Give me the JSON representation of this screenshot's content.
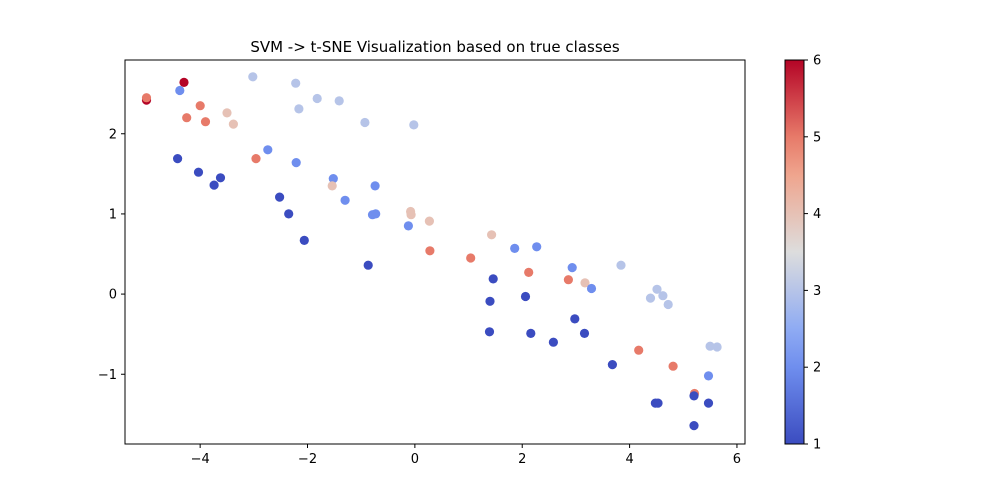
{
  "chart_data": {
    "type": "scatter",
    "title": "SVM -> t-SNE Visualization based on true classes",
    "xlabel": "",
    "ylabel": "",
    "xlim": [
      -5.4,
      6.15
    ],
    "ylim": [
      -1.87,
      2.92
    ],
    "x_ticks": [
      -4,
      -2,
      0,
      2,
      4,
      6
    ],
    "y_ticks": [
      -1,
      0,
      1,
      2
    ],
    "x_tick_labels": [
      "−4",
      "−2",
      "0",
      "2",
      "4",
      "6"
    ],
    "y_tick_labels": [
      "−1",
      "0",
      "1",
      "2"
    ],
    "colormap": "coolwarm",
    "colorbar": {
      "min": 1,
      "max": 6,
      "ticks": [
        1,
        2,
        3,
        4,
        5,
        6
      ],
      "tick_labels": [
        "1",
        "2",
        "3",
        "4",
        "5",
        "6"
      ]
    },
    "grid": false,
    "points": [
      {
        "x": -5.0,
        "y": 2.42,
        "c": 6
      },
      {
        "x": -5.0,
        "y": 2.45,
        "c": 5
      },
      {
        "x": -4.3,
        "y": 2.64,
        "c": 6
      },
      {
        "x": -4.38,
        "y": 2.54,
        "c": 2
      },
      {
        "x": -4.25,
        "y": 2.2,
        "c": 5
      },
      {
        "x": -4.0,
        "y": 2.35,
        "c": 5
      },
      {
        "x": -3.9,
        "y": 2.15,
        "c": 5
      },
      {
        "x": -3.5,
        "y": 2.26,
        "c": 4
      },
      {
        "x": -3.38,
        "y": 2.12,
        "c": 4
      },
      {
        "x": -3.02,
        "y": 2.71,
        "c": 3
      },
      {
        "x": -2.22,
        "y": 2.63,
        "c": 3
      },
      {
        "x": -1.82,
        "y": 2.44,
        "c": 3
      },
      {
        "x": -2.16,
        "y": 2.31,
        "c": 3
      },
      {
        "x": -1.41,
        "y": 2.41,
        "c": 3
      },
      {
        "x": -0.93,
        "y": 2.14,
        "c": 3
      },
      {
        "x": -0.02,
        "y": 2.11,
        "c": 3
      },
      {
        "x": -4.42,
        "y": 1.69,
        "c": 1
      },
      {
        "x": -4.03,
        "y": 1.52,
        "c": 1
      },
      {
        "x": -3.62,
        "y": 1.45,
        "c": 1
      },
      {
        "x": -3.74,
        "y": 1.36,
        "c": 1
      },
      {
        "x": -2.96,
        "y": 1.69,
        "c": 5
      },
      {
        "x": -2.74,
        "y": 1.8,
        "c": 2
      },
      {
        "x": -2.21,
        "y": 1.64,
        "c": 2
      },
      {
        "x": -2.52,
        "y": 1.21,
        "c": 1
      },
      {
        "x": -2.35,
        "y": 1.0,
        "c": 1
      },
      {
        "x": -2.06,
        "y": 0.67,
        "c": 1
      },
      {
        "x": -1.52,
        "y": 1.44,
        "c": 2
      },
      {
        "x": -1.54,
        "y": 1.35,
        "c": 4
      },
      {
        "x": -1.3,
        "y": 1.17,
        "c": 2
      },
      {
        "x": -0.74,
        "y": 1.35,
        "c": 2
      },
      {
        "x": -0.79,
        "y": 0.99,
        "c": 2
      },
      {
        "x": -0.73,
        "y": 1.0,
        "c": 2
      },
      {
        "x": -0.87,
        "y": 0.36,
        "c": 1
      },
      {
        "x": -0.08,
        "y": 1.03,
        "c": 4
      },
      {
        "x": -0.07,
        "y": 0.99,
        "c": 4
      },
      {
        "x": -0.12,
        "y": 0.85,
        "c": 2
      },
      {
        "x": 0.27,
        "y": 0.91,
        "c": 4
      },
      {
        "x": 0.28,
        "y": 0.54,
        "c": 5
      },
      {
        "x": 1.04,
        "y": 0.45,
        "c": 5
      },
      {
        "x": 1.43,
        "y": 0.74,
        "c": 4
      },
      {
        "x": 1.46,
        "y": 0.19,
        "c": 1
      },
      {
        "x": 1.4,
        "y": -0.09,
        "c": 1
      },
      {
        "x": 1.39,
        "y": -0.47,
        "c": 1
      },
      {
        "x": 1.86,
        "y": 0.57,
        "c": 2
      },
      {
        "x": 2.27,
        "y": 0.59,
        "c": 2
      },
      {
        "x": 2.12,
        "y": 0.27,
        "c": 5
      },
      {
        "x": 2.06,
        "y": -0.03,
        "c": 1
      },
      {
        "x": 2.16,
        "y": -0.49,
        "c": 1
      },
      {
        "x": 2.58,
        "y": -0.6,
        "c": 1
      },
      {
        "x": 2.86,
        "y": 0.18,
        "c": 5
      },
      {
        "x": 2.93,
        "y": 0.33,
        "c": 2
      },
      {
        "x": 3.17,
        "y": 0.14,
        "c": 4
      },
      {
        "x": 3.29,
        "y": 0.07,
        "c": 2
      },
      {
        "x": 2.98,
        "y": -0.31,
        "c": 1
      },
      {
        "x": 3.16,
        "y": -0.49,
        "c": 1
      },
      {
        "x": 3.68,
        "y": -0.88,
        "c": 1
      },
      {
        "x": 3.84,
        "y": 0.36,
        "c": 3
      },
      {
        "x": 4.51,
        "y": 0.06,
        "c": 3
      },
      {
        "x": 4.39,
        "y": -0.05,
        "c": 3
      },
      {
        "x": 4.62,
        "y": -0.02,
        "c": 3
      },
      {
        "x": 4.72,
        "y": -0.13,
        "c": 3
      },
      {
        "x": 4.17,
        "y": -0.7,
        "c": 5
      },
      {
        "x": 4.81,
        "y": -0.9,
        "c": 5
      },
      {
        "x": 4.48,
        "y": -1.36,
        "c": 1
      },
      {
        "x": 4.53,
        "y": -1.36,
        "c": 1
      },
      {
        "x": 5.21,
        "y": -1.24,
        "c": 5
      },
      {
        "x": 5.2,
        "y": -1.27,
        "c": 1
      },
      {
        "x": 5.47,
        "y": -1.02,
        "c": 2
      },
      {
        "x": 5.5,
        "y": -0.65,
        "c": 3
      },
      {
        "x": 5.63,
        "y": -0.66,
        "c": 3
      },
      {
        "x": 5.47,
        "y": -1.36,
        "c": 1
      },
      {
        "x": 5.2,
        "y": -1.64,
        "c": 1
      }
    ]
  }
}
